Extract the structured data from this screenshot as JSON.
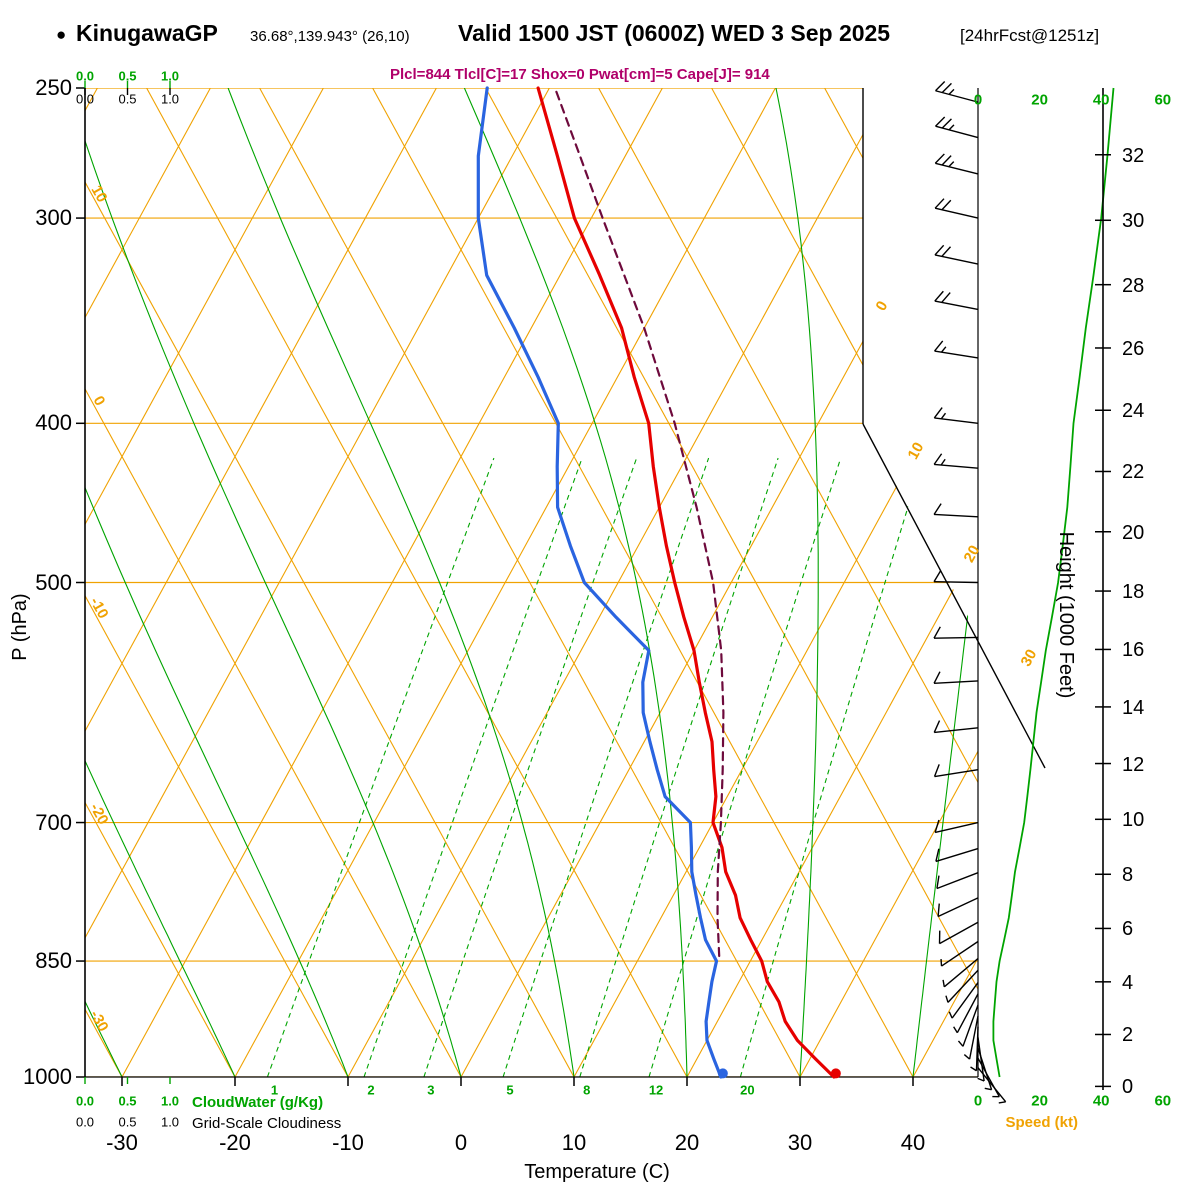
{
  "header": {
    "bullet": "●",
    "station": "KinugawaGP",
    "coords": "36.68°,139.943° (26,10)",
    "valid": "Valid 1500 JST (0600Z) WED 3 Sep 2025",
    "forecast_tag": "[24hrFcst@1251z]",
    "indices": "Plcl=844 Tlcl[C]=17 Shox=0 Pwat[cm]=5 Cape[J]= 914"
  },
  "axis_labels": {
    "pressure": "P (hPa)",
    "temperature": "Temperature (C)",
    "height": "Height (1000 Feet)",
    "speed": "Speed (kt)",
    "cloudwater": "CloudWater (g/Kg)",
    "cloudiness": "Grid-Scale Cloudiness"
  },
  "colors": {
    "grid_orange": "#f0a202",
    "green": "#00a400",
    "temperature": "#e60000",
    "dewpoint": "#2a64e0",
    "parcel": "#6e0a3c",
    "indices": "#b0006a",
    "black": "#000000"
  },
  "chart_data": {
    "type": "line",
    "diagram": "skew-T log-P thermodynamic sounding",
    "pressure_axis_hpa": [
      1000,
      250
    ],
    "temperature_axis_c": [
      -30,
      40
    ],
    "pressure_ticks_hpa": [
      250,
      300,
      400,
      500,
      700,
      850,
      1000
    ],
    "temperature_ticks_c": [
      -30,
      -20,
      -10,
      0,
      10,
      20,
      30,
      40
    ],
    "height_ticks_kft": [
      0,
      2,
      4,
      6,
      8,
      10,
      12,
      14,
      16,
      18,
      20,
      22,
      24,
      26,
      28,
      30,
      32
    ],
    "speed_ticks_kt": [
      0,
      20,
      40,
      60
    ],
    "cloud_scale_ticks": [
      "0.0",
      "0.5",
      "1.0"
    ],
    "isotherm_labels_right_c": [
      0,
      10,
      20,
      30
    ],
    "dry_adiabat_labels_left_c": [
      10,
      0,
      -10,
      -20,
      -30
    ],
    "mixing_ratio_labels_gkg": [
      1,
      2,
      3,
      5,
      8,
      12,
      20
    ],
    "grid": {
      "isotherm_step_c": 10,
      "dry_adiabat_step_c": 10,
      "moist_adiabat_starts_c": [
        -60,
        -50,
        -40,
        -30,
        -20,
        -10,
        0,
        10,
        20,
        30,
        40
      ],
      "mixing_ratio_lines_gkg": [
        1,
        2,
        3,
        5,
        8,
        12,
        20
      ]
    },
    "series": [
      {
        "name": "temperature",
        "units": {
          "x": "C",
          "y": "hPa"
        },
        "points": [
          [
            1000,
            33
          ],
          [
            975,
            30.5
          ],
          [
            950,
            28
          ],
          [
            925,
            26
          ],
          [
            900,
            24.5
          ],
          [
            875,
            22.5
          ],
          [
            850,
            21
          ],
          [
            825,
            19
          ],
          [
            800,
            17
          ],
          [
            775,
            15.5
          ],
          [
            750,
            13.5
          ],
          [
            725,
            12
          ],
          [
            700,
            10
          ],
          [
            675,
            9
          ],
          [
            650,
            7.5
          ],
          [
            625,
            6
          ],
          [
            600,
            4
          ],
          [
            575,
            2
          ],
          [
            550,
            0
          ],
          [
            525,
            -2.5
          ],
          [
            500,
            -5
          ],
          [
            475,
            -7.5
          ],
          [
            450,
            -10
          ],
          [
            425,
            -12.5
          ],
          [
            400,
            -15
          ],
          [
            375,
            -18.5
          ],
          [
            350,
            -22
          ],
          [
            325,
            -26.5
          ],
          [
            300,
            -31.5
          ],
          [
            275,
            -36
          ],
          [
            250,
            -41
          ]
        ]
      },
      {
        "name": "dewpoint",
        "units": {
          "x": "C",
          "y": "hPa"
        },
        "points": [
          [
            1000,
            23
          ],
          [
            975,
            21.5
          ],
          [
            950,
            20
          ],
          [
            925,
            19
          ],
          [
            900,
            18.3
          ],
          [
            875,
            17.6
          ],
          [
            850,
            17
          ],
          [
            825,
            15
          ],
          [
            800,
            13.5
          ],
          [
            775,
            12
          ],
          [
            750,
            10.5
          ],
          [
            725,
            9.3
          ],
          [
            700,
            8
          ],
          [
            675,
            4.5
          ],
          [
            650,
            2.5
          ],
          [
            625,
            0.5
          ],
          [
            600,
            -1.5
          ],
          [
            575,
            -3
          ],
          [
            550,
            -4
          ],
          [
            525,
            -8.5
          ],
          [
            500,
            -13
          ],
          [
            475,
            -16
          ],
          [
            450,
            -19
          ],
          [
            425,
            -21
          ],
          [
            400,
            -23
          ],
          [
            375,
            -27
          ],
          [
            350,
            -31.5
          ],
          [
            325,
            -36.5
          ],
          [
            300,
            -40
          ],
          [
            275,
            -43
          ],
          [
            250,
            -45.5
          ]
        ]
      },
      {
        "name": "parcel",
        "style": "dashed",
        "units": {
          "x": "C",
          "y": "hPa"
        },
        "points": [
          [
            844,
            17
          ],
          [
            800,
            15
          ],
          [
            750,
            12.8
          ],
          [
            700,
            10.7
          ],
          [
            650,
            8.3
          ],
          [
            600,
            5.6
          ],
          [
            550,
            2.4
          ],
          [
            500,
            -1.6
          ],
          [
            450,
            -6.7
          ],
          [
            400,
            -12.7
          ],
          [
            350,
            -20
          ],
          [
            300,
            -29
          ],
          [
            275,
            -34
          ],
          [
            250,
            -39.5
          ]
        ]
      }
    ],
    "surface_points": [
      {
        "name": "surface-temperature",
        "p": 995,
        "t": 33,
        "series": "temperature"
      },
      {
        "name": "surface-dewpoint",
        "p": 995,
        "t": 23,
        "series": "dewpoint"
      }
    ],
    "wind_barbs": [
      [
        255,
        285,
        25
      ],
      [
        268,
        285,
        25
      ],
      [
        282,
        284,
        25
      ],
      [
        300,
        283,
        20
      ],
      [
        320,
        282,
        20
      ],
      [
        341,
        281,
        20
      ],
      [
        365,
        279,
        15
      ],
      [
        400,
        277,
        15
      ],
      [
        426,
        275,
        15
      ],
      [
        456,
        273,
        12
      ],
      [
        500,
        271,
        10
      ],
      [
        540,
        269,
        10
      ],
      [
        574,
        267,
        10
      ],
      [
        613,
        264,
        10
      ],
      [
        650,
        261,
        10
      ],
      [
        700,
        257,
        10
      ],
      [
        726,
        253,
        10
      ],
      [
        751,
        249,
        10
      ],
      [
        778,
        245,
        10
      ],
      [
        805,
        241,
        10
      ],
      [
        827,
        236,
        9
      ],
      [
        847,
        230,
        8
      ],
      [
        861,
        223,
        8
      ],
      [
        876,
        216,
        7
      ],
      [
        890,
        208,
        7
      ],
      [
        904,
        200,
        6
      ],
      [
        918,
        191,
        6
      ],
      [
        932,
        182,
        5
      ],
      [
        946,
        172,
        5
      ],
      [
        960,
        162,
        5
      ],
      [
        974,
        151,
        5
      ],
      [
        987,
        141,
        5
      ]
    ],
    "wind_speed_profile_kt": [
      [
        1000,
        7
      ],
      [
        975,
        6
      ],
      [
        950,
        5
      ],
      [
        925,
        5
      ],
      [
        900,
        5.5
      ],
      [
        875,
        6
      ],
      [
        850,
        7
      ],
      [
        825,
        8.5
      ],
      [
        800,
        10
      ],
      [
        775,
        11
      ],
      [
        750,
        12
      ],
      [
        725,
        13.5
      ],
      [
        700,
        15
      ],
      [
        675,
        16
      ],
      [
        650,
        17
      ],
      [
        625,
        18
      ],
      [
        600,
        19
      ],
      [
        575,
        20.5
      ],
      [
        550,
        22
      ],
      [
        525,
        24
      ],
      [
        500,
        26
      ],
      [
        475,
        27.5
      ],
      [
        450,
        29
      ],
      [
        425,
        30
      ],
      [
        400,
        31
      ],
      [
        375,
        33
      ],
      [
        350,
        35
      ],
      [
        325,
        37.5
      ],
      [
        300,
        40
      ],
      [
        275,
        42
      ],
      [
        250,
        44
      ]
    ]
  }
}
